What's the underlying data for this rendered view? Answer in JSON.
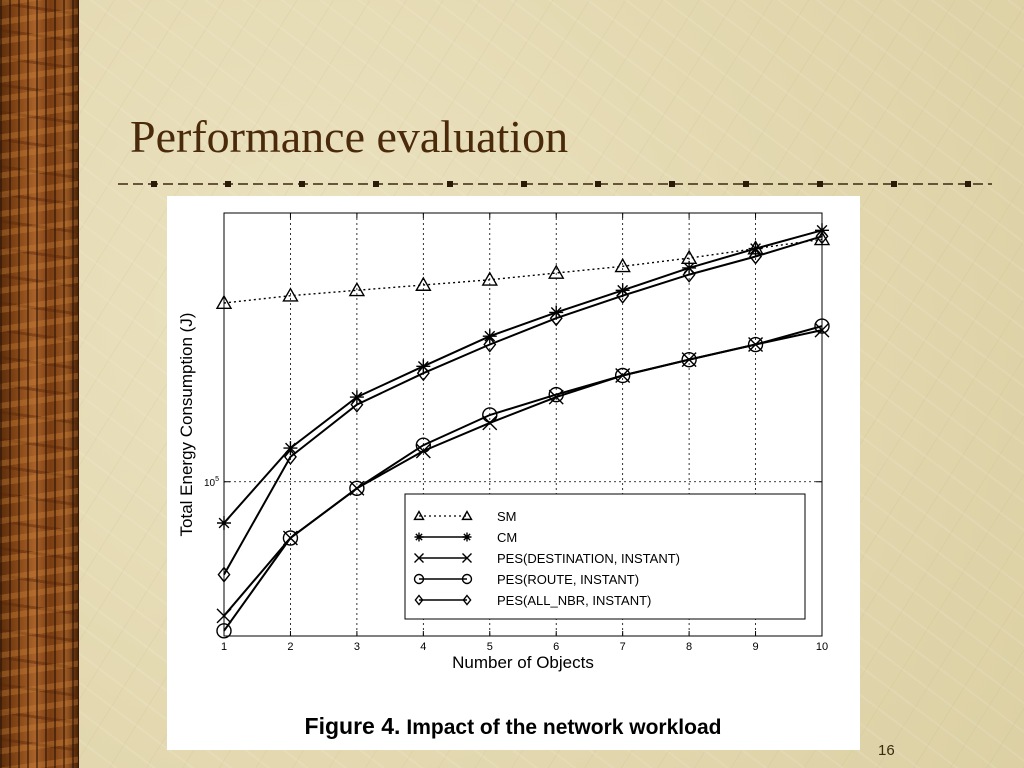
{
  "slide": {
    "title": "Performance evaluation",
    "page_number": "16"
  },
  "figure": {
    "caption_label": "Figure 4.",
    "caption_text": "Impact of the network workload"
  },
  "chart_data": {
    "type": "line",
    "xlabel": "Number of Objects",
    "ylabel": "Total Energy Consumption (J)",
    "y_scale": "log",
    "ylim": [
      62000,
      230000
    ],
    "xlim": [
      1,
      10
    ],
    "x": [
      1,
      2,
      3,
      4,
      5,
      6,
      7,
      8,
      9,
      10
    ],
    "x_tick_labels": [
      "1",
      "2",
      "3",
      "4",
      "5",
      "6",
      "7",
      "8",
      "9",
      "10"
    ],
    "y_tick_labels": [
      {
        "base": "10",
        "exp": "5",
        "value": 100000
      }
    ],
    "grid": "dotted vertical lines at each x, dotted horizontal at 10^5",
    "legend_position": "lower-right",
    "series": [
      {
        "name": "SM",
        "marker": "triangle",
        "dash": "dotted",
        "values": [
          174000,
          178000,
          181000,
          184000,
          187000,
          191000,
          195000,
          200000,
          206000,
          212000
        ]
      },
      {
        "name": "CM",
        "marker": "star",
        "dash": "solid",
        "values": [
          88000,
          111000,
          130000,
          143000,
          157000,
          169000,
          181000,
          194000,
          206000,
          218000
        ]
      },
      {
        "name": "PES(DESTINATION, INSTANT)",
        "marker": "x",
        "dash": "solid",
        "values": [
          66000,
          84000,
          98000,
          110000,
          120000,
          130000,
          139000,
          146000,
          153000,
          160000
        ]
      },
      {
        "name": "PES(ROUTE, INSTANT)",
        "marker": "circle",
        "dash": "solid",
        "values": [
          63000,
          84000,
          98000,
          112000,
          123000,
          131000,
          139000,
          146000,
          153000,
          162000
        ]
      },
      {
        "name": "PES(ALL_NBR, INSTANT)",
        "marker": "diamond",
        "dash": "solid",
        "values": [
          75000,
          108000,
          127000,
          140000,
          153000,
          166000,
          178000,
          190000,
          201000,
          214000
        ]
      }
    ]
  }
}
